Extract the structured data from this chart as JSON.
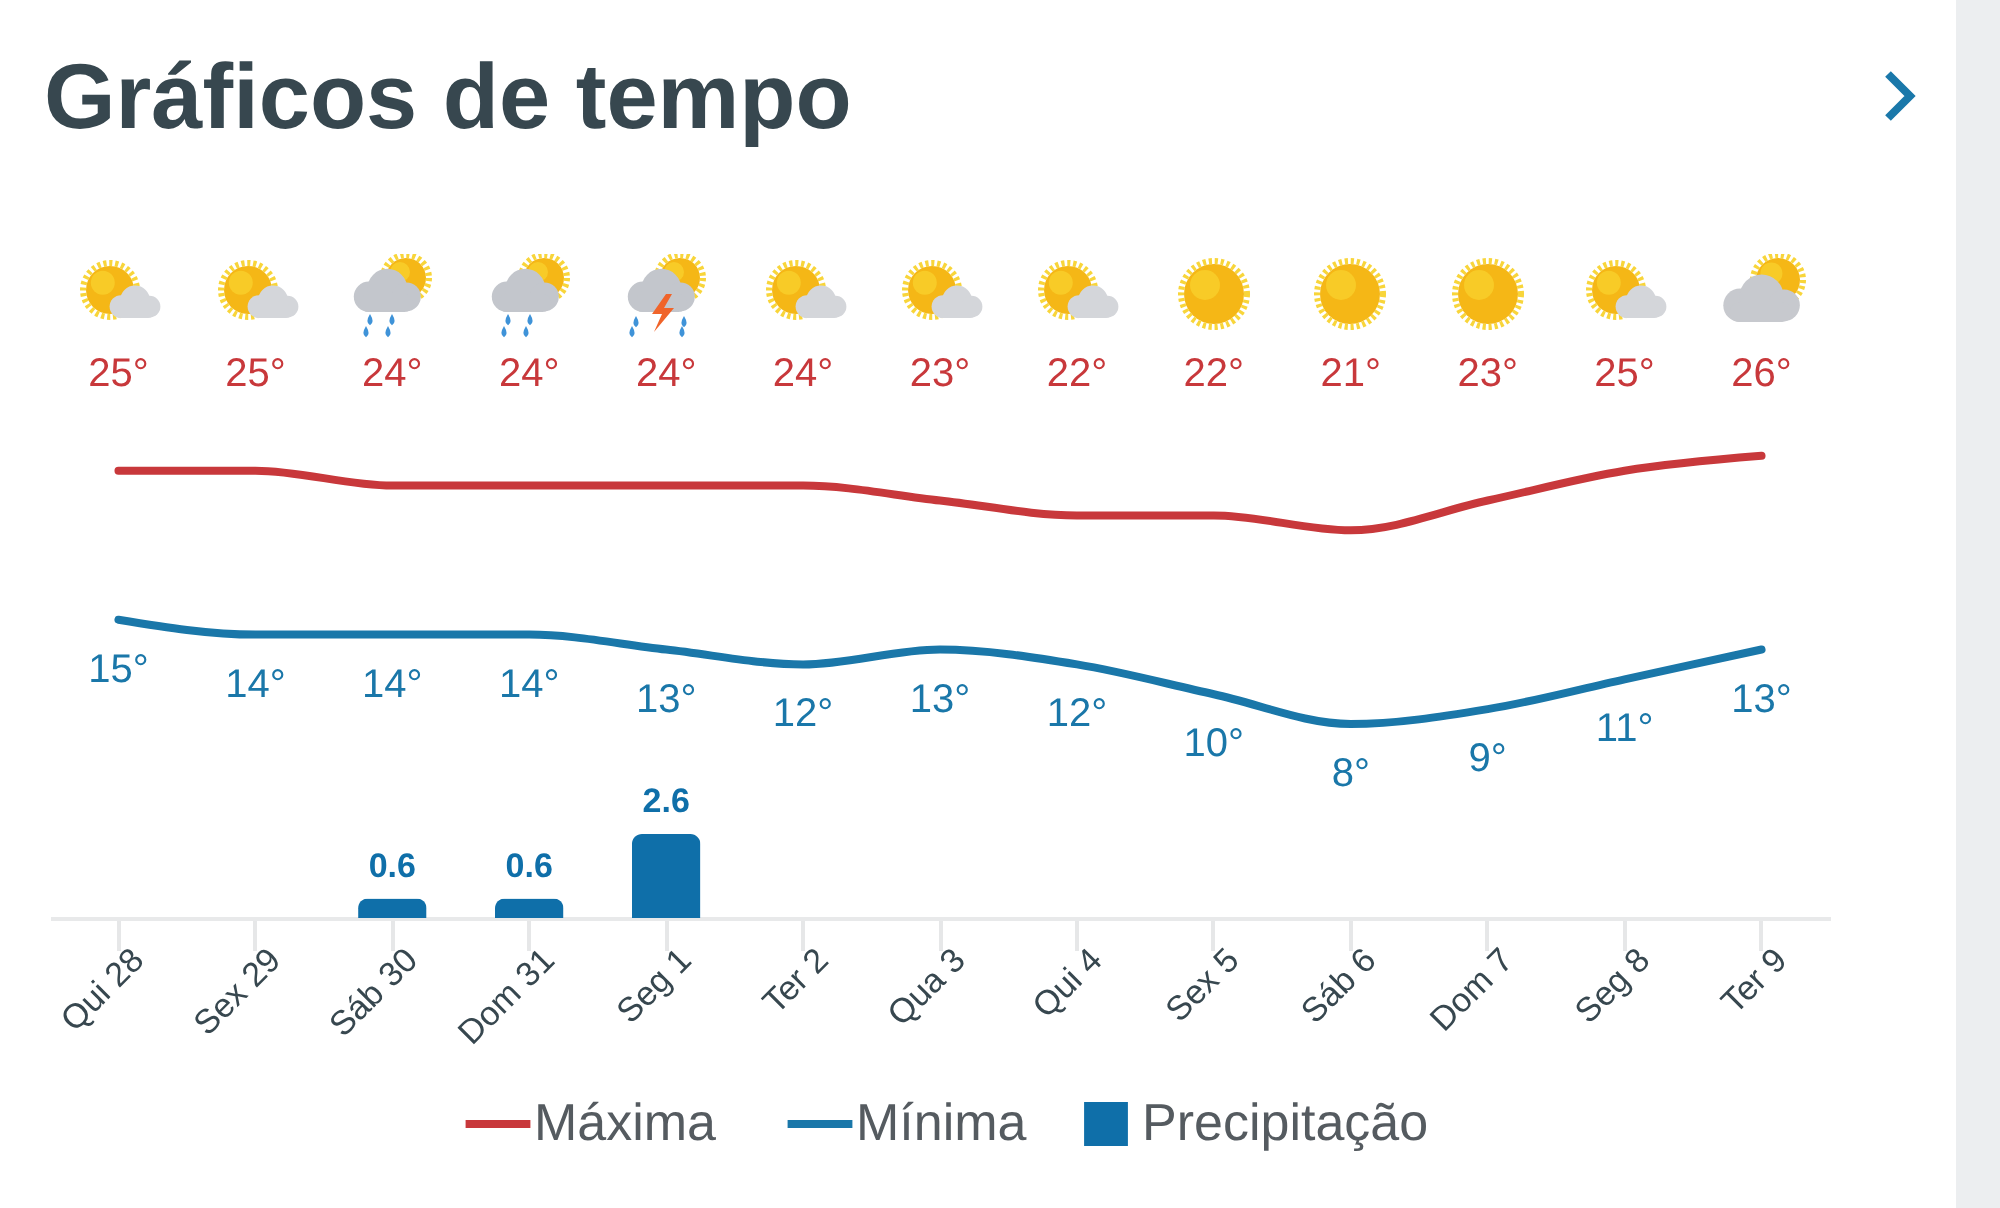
{
  "chart_data": [
    {
      "type": "line",
      "title": "Gráficos de tempo",
      "categories": [
        "Qui 28",
        "Sex 29",
        "Sáb 30",
        "Dom 31",
        "Seg 1",
        "Ter 2",
        "Qua 3",
        "Qui 4",
        "Sex 5",
        "Sáb 6",
        "Dom 7",
        "Seg 8",
        "Ter 9"
      ],
      "series": [
        {
          "name": "Máxima",
          "color": "#c8383b",
          "values": [
            25,
            25,
            24,
            24,
            24,
            24,
            23,
            22,
            22,
            21,
            23,
            25,
            26
          ],
          "value_labels": [
            "25°",
            "25°",
            "24°",
            "24°",
            "24°",
            "24°",
            "23°",
            "22°",
            "22°",
            "21°",
            "23°",
            "25°",
            "26°"
          ]
        },
        {
          "name": "Mínima",
          "color": "#1a77a9",
          "values": [
            15,
            14,
            14,
            14,
            13,
            12,
            13,
            12,
            10,
            8,
            9,
            11,
            13
          ],
          "value_labels": [
            "15°",
            "14°",
            "14°",
            "14°",
            "13°",
            "12°",
            "13°",
            "12°",
            "10°",
            "8°",
            "9°",
            "11°",
            "13°"
          ]
        }
      ],
      "legend": "bottom",
      "line_style": "solid",
      "tick_labels": false
    },
    {
      "type": "bar",
      "categories": [
        "Qui 28",
        "Sex 29",
        "Sáb 30",
        "Dom 31",
        "Seg 1",
        "Ter 2",
        "Qua 3",
        "Qui 4",
        "Sex 5",
        "Sáb 6",
        "Dom 7",
        "Seg 8",
        "Ter 9"
      ],
      "series": [
        {
          "name": "Precipitação",
          "color": "#0f6fa9",
          "values": [
            null,
            null,
            0.6,
            0.6,
            2.6,
            null,
            null,
            null,
            null,
            null,
            null,
            null,
            null
          ],
          "value_labels": [
            null,
            null,
            "0.6",
            "0.6",
            "2.6",
            null,
            null,
            null,
            null,
            null,
            null,
            null,
            null
          ]
        }
      ],
      "legend": "bottom",
      "tick_labels": "x"
    }
  ]
}
